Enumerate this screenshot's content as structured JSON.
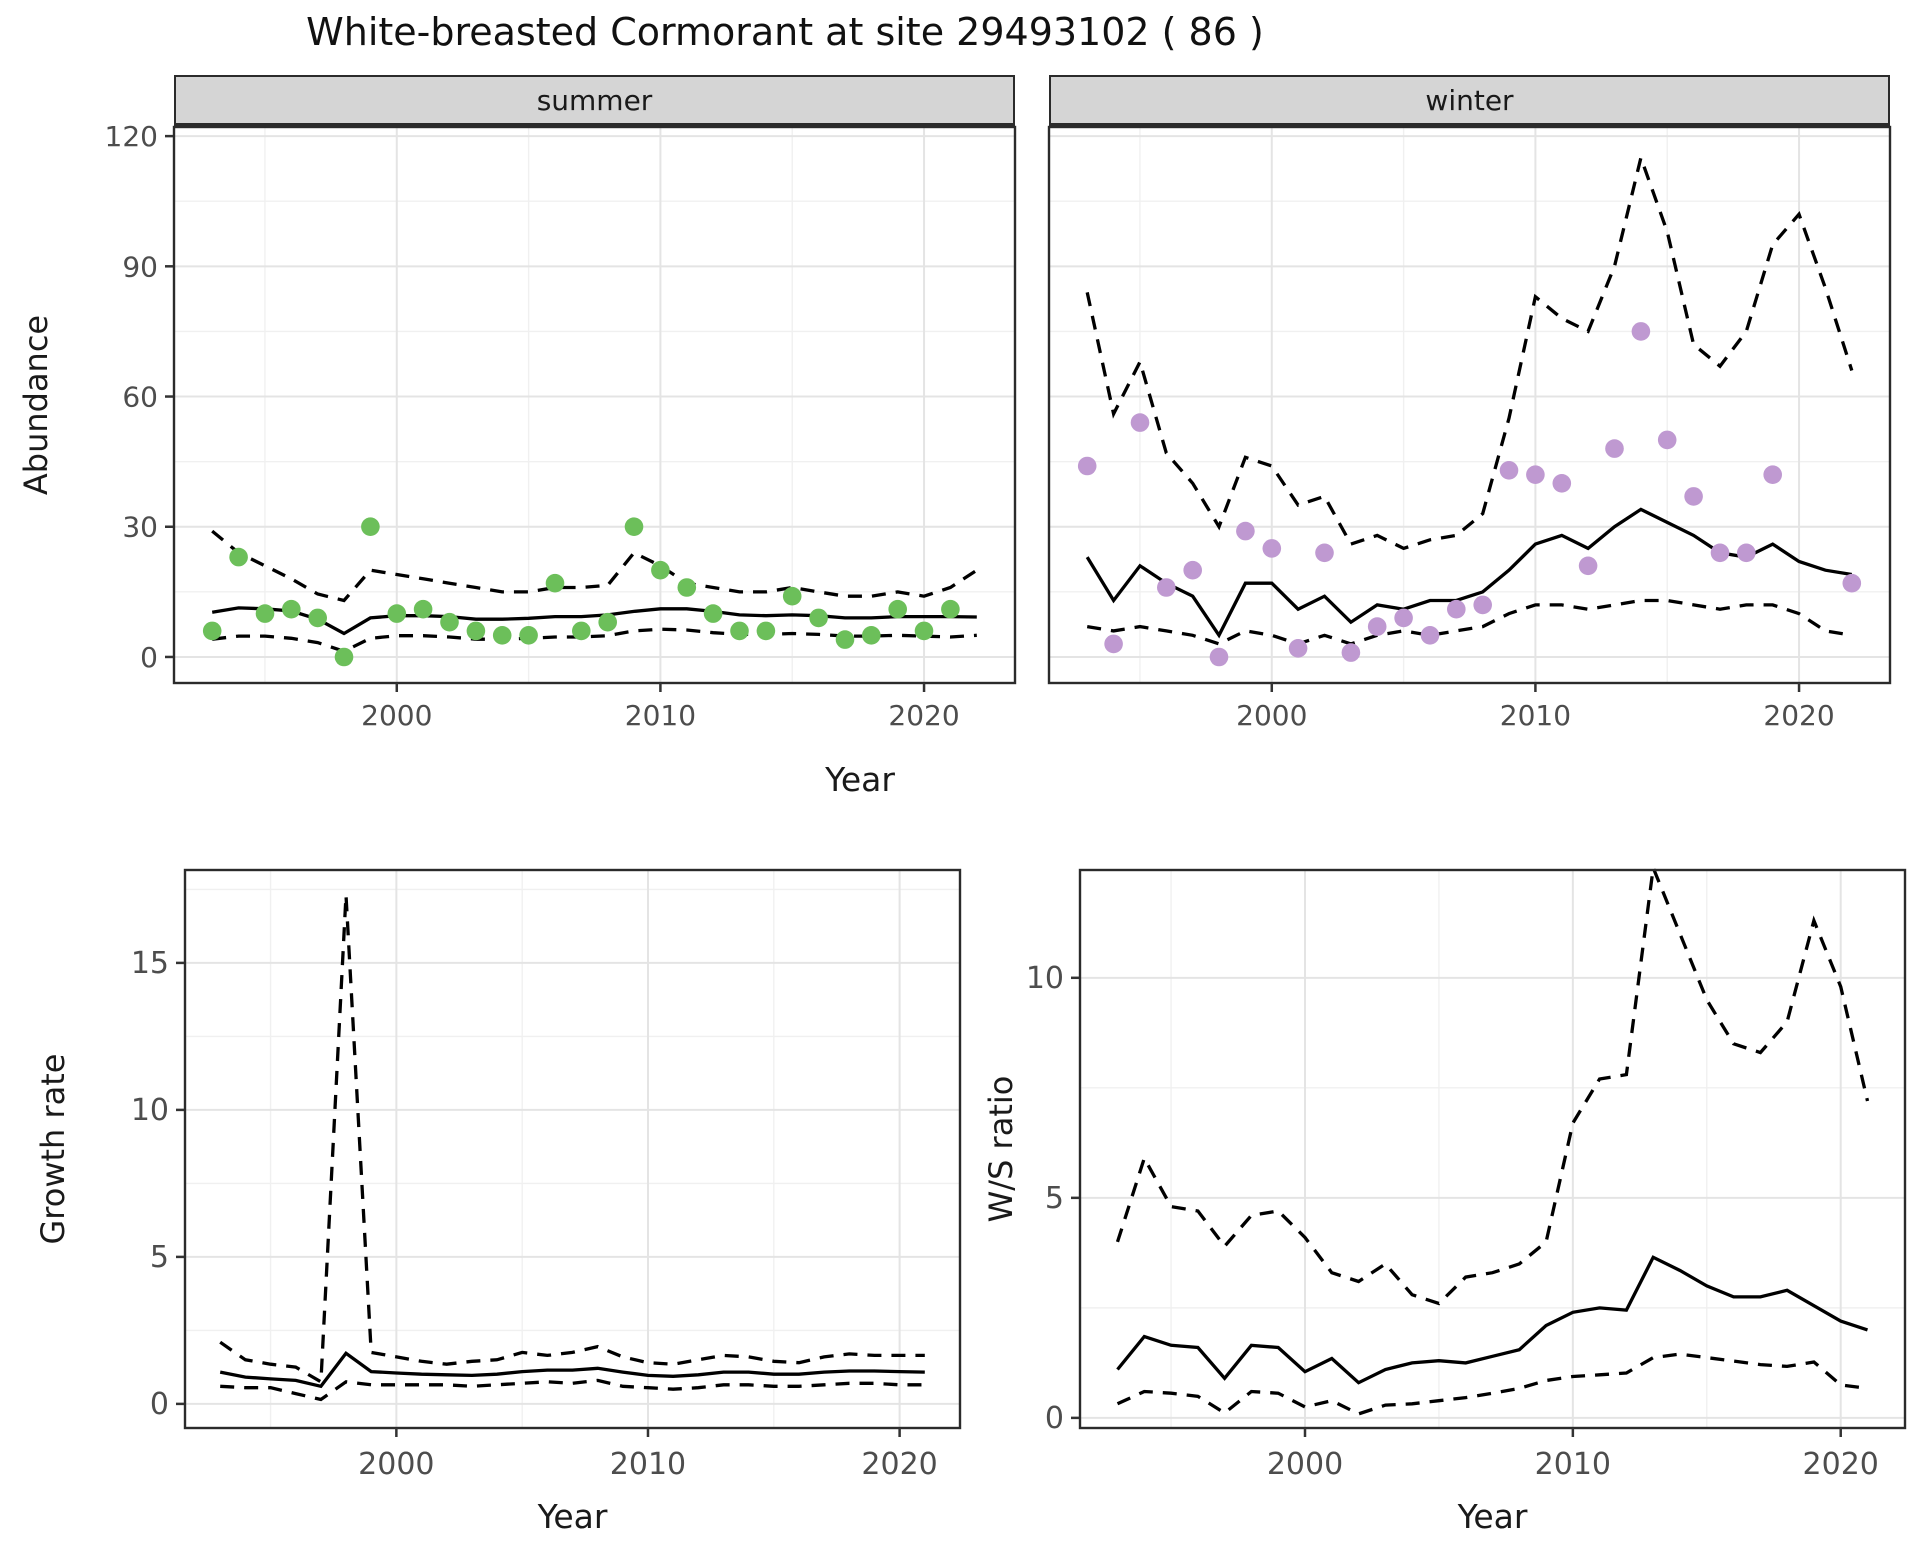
{
  "title": "White-breasted Cormorant at site 29493102 ( 86 )",
  "colors": {
    "summer_points": "#6cbf5a",
    "winter_points": "#bf99d1",
    "line": "#000000",
    "strip_fill": "#d5d5d5",
    "panel_border": "#2b2b2b",
    "grid_major": "#e4e4e4",
    "grid_minor": "#f0f0f0",
    "tick_text": "#4d4d4d"
  },
  "chart_data": [
    {
      "id": "summer",
      "type": "line+scatter",
      "facet": "summer",
      "xlabel": "Year",
      "ylabel": "Abundance",
      "xlim": [
        1991.55,
        2023.45
      ],
      "ylim": [
        -6,
        122.1
      ],
      "xticks": [
        2000,
        2010,
        2020
      ],
      "xticks_minor": [
        1995,
        2005,
        2015
      ],
      "yticks": [
        0,
        30,
        60,
        90,
        120
      ],
      "yticks_minor": [
        15,
        45,
        75,
        105
      ],
      "x": [
        1993,
        1994,
        1995,
        1996,
        1997,
        1998,
        1999,
        2000,
        2001,
        2002,
        2003,
        2004,
        2005,
        2006,
        2007,
        2008,
        2009,
        2010,
        2011,
        2012,
        2013,
        2014,
        2015,
        2016,
        2017,
        2018,
        2019,
        2020,
        2021,
        2022
      ],
      "series": [
        {
          "name": "observed",
          "type": "scatter",
          "values": [
            6,
            23,
            10,
            11,
            9,
            0,
            30,
            10,
            11,
            8,
            6,
            5,
            5,
            17,
            6,
            8,
            30,
            20,
            16,
            10,
            6,
            6,
            14,
            9,
            4,
            5,
            11,
            6,
            11,
            null
          ]
        },
        {
          "name": "fit",
          "type": "line",
          "style": "solid",
          "values": [
            10.3,
            11.3,
            11.1,
            10.6,
            8.7,
            5.4,
            9,
            9.5,
            9.5,
            9.3,
            8.7,
            8.7,
            8.9,
            9.3,
            9.3,
            9.7,
            10.5,
            11.1,
            11.1,
            10.5,
            9.7,
            9.5,
            9.7,
            9.5,
            9,
            9,
            9.3,
            9.3,
            9.3,
            9.2
          ]
        },
        {
          "name": "upper95",
          "type": "line",
          "style": "dashed",
          "values": [
            29,
            24,
            21,
            18,
            14.5,
            13,
            20,
            19,
            18,
            17,
            16,
            15,
            15,
            16,
            16,
            16.5,
            24,
            21,
            17,
            16,
            15,
            15,
            16,
            15,
            14,
            14,
            15,
            14,
            16,
            20
          ]
        },
        {
          "name": "lower95",
          "type": "line",
          "style": "dashed",
          "values": [
            4.1,
            4.8,
            4.8,
            4.3,
            3.3,
            1.3,
            4.3,
            4.9,
            4.9,
            4.6,
            4.1,
            4.1,
            4.3,
            4.6,
            4.6,
            4.9,
            6,
            6.4,
            6.2,
            5.6,
            5.2,
            5.2,
            5.4,
            5.2,
            4.8,
            4.8,
            5,
            4.8,
            4.6,
            5
          ]
        }
      ]
    },
    {
      "id": "winter",
      "type": "line+scatter",
      "facet": "winter",
      "xlabel": "Year",
      "ylabel": "Abundance",
      "xlim": [
        1991.55,
        2023.45
      ],
      "ylim": [
        -6,
        122.1
      ],
      "xticks": [
        2000,
        2010,
        2020
      ],
      "xticks_minor": [
        1995,
        2005,
        2015
      ],
      "yticks": [
        0,
        30,
        60,
        90,
        120
      ],
      "yticks_minor": [
        15,
        45,
        75,
        105
      ],
      "x": [
        1993,
        1994,
        1995,
        1996,
        1997,
        1998,
        1999,
        2000,
        2001,
        2002,
        2003,
        2004,
        2005,
        2006,
        2007,
        2008,
        2009,
        2010,
        2011,
        2012,
        2013,
        2014,
        2015,
        2016,
        2017,
        2018,
        2019,
        2020,
        2021,
        2022
      ],
      "series": [
        {
          "name": "observed",
          "type": "scatter",
          "values": [
            44,
            3,
            54,
            16,
            20,
            0,
            29,
            25,
            2,
            24,
            1,
            7,
            9,
            5,
            11,
            12,
            43,
            42,
            40,
            21,
            48,
            75,
            50,
            37,
            24,
            24,
            42,
            null,
            null,
            17
          ]
        },
        {
          "name": "fit",
          "type": "line",
          "style": "solid",
          "values": [
            23,
            13,
            21,
            17,
            14,
            5,
            17,
            17,
            11,
            14,
            8,
            12,
            11,
            13,
            13,
            15,
            20,
            26,
            28,
            25,
            30,
            34,
            31,
            28,
            24,
            23,
            26,
            22,
            20,
            19
          ]
        },
        {
          "name": "upper95",
          "type": "line",
          "style": "dashed",
          "values": [
            84,
            56,
            68,
            47,
            40,
            30,
            46,
            44,
            35,
            37,
            26,
            28,
            25,
            27,
            28,
            33,
            55,
            83,
            78,
            75,
            90,
            115,
            98,
            72,
            67,
            75,
            95,
            102,
            85,
            66
          ]
        },
        {
          "name": "lower95",
          "type": "line",
          "style": "dashed",
          "values": [
            7,
            6,
            7,
            6,
            5,
            3,
            6,
            5,
            3,
            5,
            3,
            5,
            6,
            5,
            6,
            7,
            10,
            12,
            12,
            11,
            12,
            13,
            13,
            12,
            11,
            12,
            12,
            10,
            6,
            5
          ]
        }
      ]
    },
    {
      "id": "growth",
      "type": "line",
      "facet": null,
      "xlabel": "Year",
      "ylabel": "Growth rate",
      "xlim": [
        1991.6,
        2022.4
      ],
      "ylim": [
        -0.82,
        18.16
      ],
      "xticks": [
        2000,
        2010,
        2020
      ],
      "xticks_minor": [
        1995,
        2005,
        2015
      ],
      "yticks": [
        0,
        5,
        10,
        15
      ],
      "yticks_minor": [
        2.5,
        7.5,
        12.5,
        17.5
      ],
      "x": [
        1993,
        1994,
        1995,
        1996,
        1997,
        1998,
        1999,
        2000,
        2001,
        2002,
        2003,
        2004,
        2005,
        2006,
        2007,
        2008,
        2009,
        2010,
        2011,
        2012,
        2013,
        2014,
        2015,
        2016,
        2017,
        2018,
        2019,
        2020,
        2021
      ],
      "series": [
        {
          "name": "fit",
          "type": "line",
          "style": "solid",
          "values": [
            1.08,
            0.91,
            0.85,
            0.8,
            0.6,
            1.72,
            1.1,
            1.05,
            1.01,
            0.99,
            0.97,
            1.01,
            1.1,
            1.15,
            1.15,
            1.21,
            1.08,
            0.97,
            0.94,
            0.99,
            1.08,
            1.08,
            1.01,
            1.01,
            1.08,
            1.12,
            1.12,
            1.1,
            1.08
          ]
        },
        {
          "name": "upper95",
          "type": "line",
          "style": "dashed",
          "values": [
            2.1,
            1.5,
            1.35,
            1.25,
            0.75,
            17.3,
            1.75,
            1.6,
            1.45,
            1.35,
            1.45,
            1.5,
            1.75,
            1.65,
            1.75,
            1.95,
            1.6,
            1.4,
            1.35,
            1.5,
            1.65,
            1.6,
            1.45,
            1.4,
            1.6,
            1.7,
            1.65,
            1.65,
            1.65
          ]
        },
        {
          "name": "lower95",
          "type": "line",
          "style": "dashed",
          "values": [
            0.6,
            0.55,
            0.55,
            0.35,
            0.15,
            0.75,
            0.65,
            0.65,
            0.65,
            0.65,
            0.6,
            0.65,
            0.7,
            0.75,
            0.7,
            0.8,
            0.6,
            0.55,
            0.5,
            0.55,
            0.65,
            0.65,
            0.6,
            0.6,
            0.65,
            0.7,
            0.7,
            0.65,
            0.65
          ]
        }
      ]
    },
    {
      "id": "ws",
      "type": "line",
      "facet": null,
      "xlabel": "Year",
      "ylabel": "W/S ratio",
      "xlim": [
        1991.6,
        2022.4
      ],
      "ylim": [
        -0.23,
        12.45
      ],
      "xticks": [
        2000,
        2010,
        2020
      ],
      "xticks_minor": [
        1995,
        2005,
        2015
      ],
      "yticks": [
        0,
        5,
        10
      ],
      "yticks_minor": [
        2.5,
        7.5,
        12.5
      ],
      "x": [
        1993,
        1994,
        1995,
        1996,
        1997,
        1998,
        1999,
        2000,
        2001,
        2002,
        2003,
        2004,
        2005,
        2006,
        2007,
        2008,
        2009,
        2010,
        2011,
        2012,
        2013,
        2014,
        2015,
        2016,
        2017,
        2018,
        2019,
        2020,
        2021
      ],
      "series": [
        {
          "name": "fit",
          "type": "line",
          "style": "solid",
          "values": [
            1.1,
            1.85,
            1.65,
            1.6,
            0.9,
            1.65,
            1.6,
            1.05,
            1.35,
            0.8,
            1.1,
            1.25,
            1.3,
            1.25,
            1.4,
            1.55,
            2.1,
            2.4,
            2.5,
            2.45,
            3.65,
            3.35,
            3,
            2.75,
            2.75,
            2.9,
            2.55,
            2.2,
            2
          ]
        },
        {
          "name": "upper95",
          "type": "line",
          "style": "dashed",
          "values": [
            4,
            5.9,
            4.8,
            4.7,
            3.9,
            4.6,
            4.7,
            4.1,
            3.3,
            3.1,
            3.5,
            2.8,
            2.6,
            3.2,
            3.3,
            3.5,
            4,
            6.7,
            7.7,
            7.8,
            12.5,
            11,
            9.5,
            8.5,
            8.3,
            9,
            11.3,
            9.8,
            7.2
          ]
        },
        {
          "name": "lower95",
          "type": "line",
          "style": "dashed",
          "values": [
            0.32,
            0.6,
            0.56,
            0.49,
            0.11,
            0.6,
            0.56,
            0.25,
            0.39,
            0.09,
            0.29,
            0.32,
            0.39,
            0.46,
            0.56,
            0.67,
            0.85,
            0.94,
            0.98,
            1.02,
            1.37,
            1.45,
            1.37,
            1.29,
            1.21,
            1.17,
            1.27,
            0.75,
            0.67
          ]
        }
      ]
    }
  ]
}
